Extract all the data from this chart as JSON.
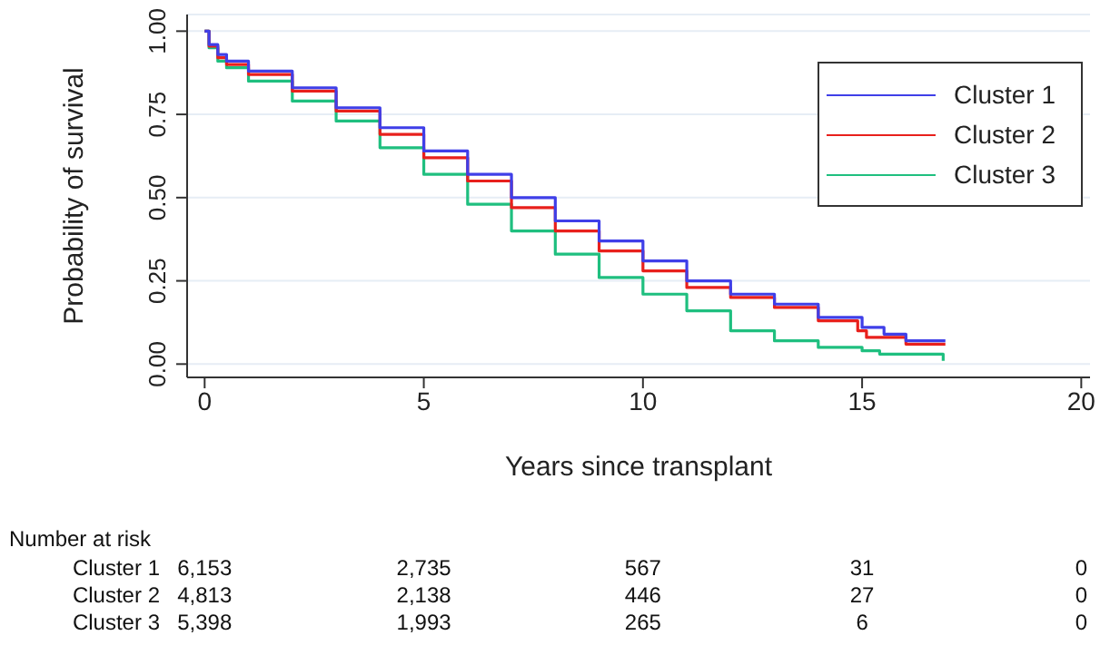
{
  "chart_data": {
    "type": "step",
    "xlabel": "Years since transplant",
    "ylabel": "Probability of survival",
    "xlim": [
      -0.4,
      20.2
    ],
    "xticks": [
      0,
      5,
      10,
      15,
      20
    ],
    "ylim": [
      -0.04,
      1.05
    ],
    "yticks": [
      {
        "value": 0,
        "label": "0.00"
      },
      {
        "value": 0.25,
        "label": "0.25"
      },
      {
        "value": 0.5,
        "label": "0.50"
      },
      {
        "value": 0.75,
        "label": "0.75"
      },
      {
        "value": 1,
        "label": "1.00"
      }
    ],
    "grid": "y",
    "legend": "top right",
    "marker": "none",
    "line_style": "solid",
    "series": [
      {
        "name": "Cluster 1",
        "color": "#3f3fe8",
        "x": [
          0,
          0.1,
          0.3,
          0.5,
          1,
          2,
          3,
          4,
          5,
          6,
          7,
          8,
          9,
          10,
          11,
          12,
          13,
          14,
          15,
          15.5,
          16,
          16.9
        ],
        "values": [
          1,
          0.96,
          0.93,
          0.91,
          0.88,
          0.83,
          0.77,
          0.71,
          0.64,
          0.57,
          0.5,
          0.43,
          0.37,
          0.31,
          0.25,
          0.21,
          0.18,
          0.14,
          0.11,
          0.09,
          0.07,
          0.07
        ]
      },
      {
        "name": "Cluster 2",
        "color": "#e8201c",
        "x": [
          0,
          0.1,
          0.3,
          0.5,
          1,
          2,
          3,
          4,
          5,
          6,
          7,
          8,
          9,
          10,
          11,
          12,
          13,
          14,
          14.9,
          15.1,
          16,
          16.9
        ],
        "values": [
          1,
          0.955,
          0.92,
          0.9,
          0.87,
          0.82,
          0.76,
          0.69,
          0.62,
          0.55,
          0.47,
          0.4,
          0.34,
          0.28,
          0.23,
          0.2,
          0.17,
          0.13,
          0.1,
          0.08,
          0.06,
          0.06
        ]
      },
      {
        "name": "Cluster 3",
        "color": "#1fbf7f",
        "x": [
          0,
          0.1,
          0.3,
          0.5,
          1,
          2,
          3,
          4,
          5,
          6,
          7,
          8,
          9,
          10,
          11,
          12,
          13,
          14,
          15,
          15.4,
          16.8,
          16.85
        ],
        "values": [
          1,
          0.95,
          0.91,
          0.89,
          0.85,
          0.79,
          0.73,
          0.65,
          0.57,
          0.48,
          0.4,
          0.33,
          0.26,
          0.21,
          0.16,
          0.1,
          0.07,
          0.05,
          0.04,
          0.03,
          0.03,
          0.01
        ]
      }
    ],
    "annotations": [
      "Number at risk",
      "6,153",
      "2,735",
      "567",
      "31",
      "0",
      "4,813",
      "2,138",
      "446",
      "27",
      "0",
      "5,398",
      "1,993",
      "265",
      "6",
      "0"
    ]
  }
}
